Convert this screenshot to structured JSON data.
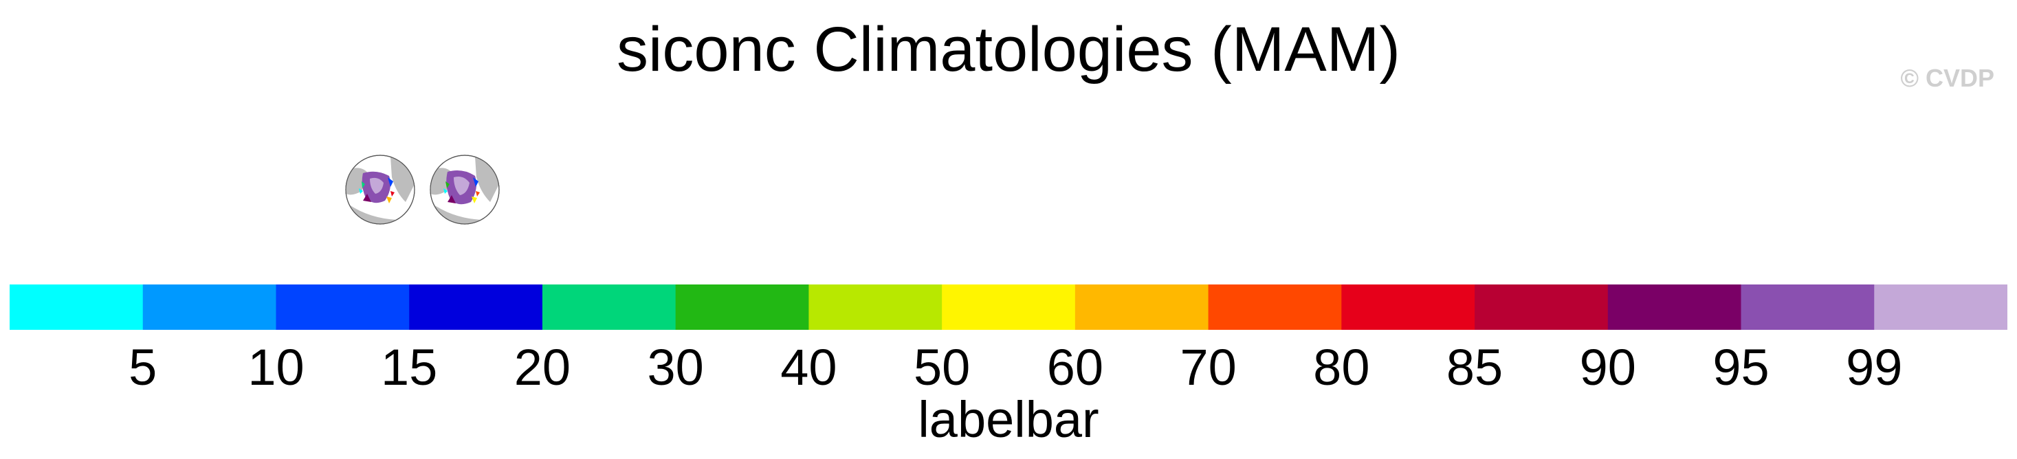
{
  "title": "siconc Climatologies (MAM)",
  "watermark": "© CVDP",
  "panels": [
    {
      "name": "obs-panel"
    },
    {
      "name": "model-panel"
    }
  ],
  "chart_data": {
    "type": "heatmap",
    "title": "siconc Climatologies (MAM)",
    "colorbar": {
      "title": "labelbar",
      "boundaries": [
        5,
        10,
        15,
        20,
        30,
        40,
        50,
        60,
        70,
        80,
        85,
        90,
        95,
        99
      ],
      "colors": [
        "#00ffff",
        "#0099ff",
        "#0044ff",
        "#0000dd",
        "#00d67a",
        "#22b814",
        "#b8e800",
        "#fff500",
        "#ffb800",
        "#ff4800",
        "#e6001a",
        "#b80033",
        "#7a0066",
        "#8a50b0",
        "#c4a8d8"
      ]
    }
  }
}
